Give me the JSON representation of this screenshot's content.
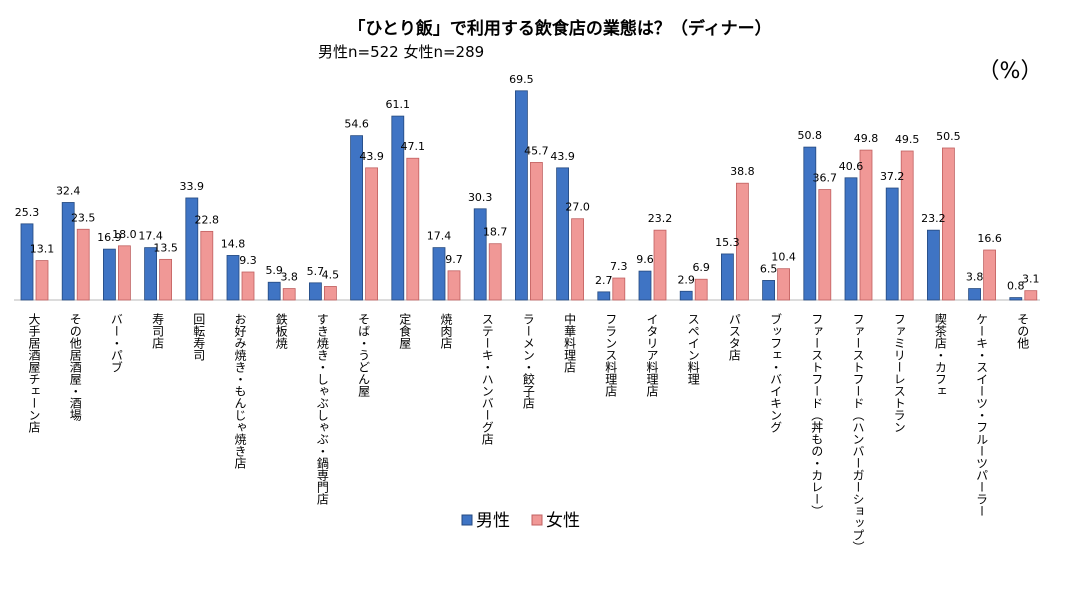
{
  "chart_data": {
    "type": "bar",
    "title": "「ひとり飯」で利用する飲食店の業態は？（ディナー）",
    "subtitle": "男性n=522 女性n=289",
    "unit": "（%）",
    "ylim": [
      0,
      75
    ],
    "grid": false,
    "legend_position": "bottom-center",
    "colors": {
      "male": "#3F74C4",
      "female": "#F09896",
      "male_edge": "#24497F",
      "female_edge": "#C06060"
    },
    "categories": [
      "大手居酒屋チェーン店",
      "その他居酒屋・酒場",
      "バー・パブ",
      "寿司店",
      "回転寿司",
      "お好み焼き・もんじゃ焼き店",
      "鉄板焼",
      "すき焼き・しゃぶしゃぶ・鍋専門店",
      "そば・うどん屋",
      "定食屋",
      "焼肉店",
      "ステーキ・ハンバーグ店",
      "ラーメン・餃子店",
      "中華料理店",
      "フランス料理店",
      "イタリア料理店",
      "スペイン料理",
      "パスタ店",
      "ブッフェ・バイキング",
      "ファーストフード（丼もの・カレー）",
      "ファーストフード（ハンバーガーショップ）",
      "ファミリーレストラン",
      "喫茶店・カフェ",
      "ケーキ・スイーツ・フルーツパーラー",
      "その他"
    ],
    "series": [
      {
        "name": "男性",
        "values": [
          25.3,
          32.4,
          16.9,
          17.4,
          33.9,
          14.8,
          5.9,
          5.7,
          54.6,
          61.1,
          17.4,
          30.3,
          69.5,
          43.9,
          2.7,
          9.6,
          2.9,
          15.3,
          6.5,
          50.8,
          40.6,
          37.2,
          23.2,
          3.8,
          0.8
        ]
      },
      {
        "name": "女性",
        "values": [
          13.1,
          23.5,
          18.0,
          13.5,
          22.8,
          9.3,
          3.8,
          4.5,
          43.9,
          47.1,
          9.7,
          18.7,
          45.7,
          27.0,
          7.3,
          23.2,
          6.9,
          38.8,
          10.4,
          36.7,
          49.8,
          49.5,
          50.5,
          16.6,
          3.1
        ]
      }
    ]
  }
}
